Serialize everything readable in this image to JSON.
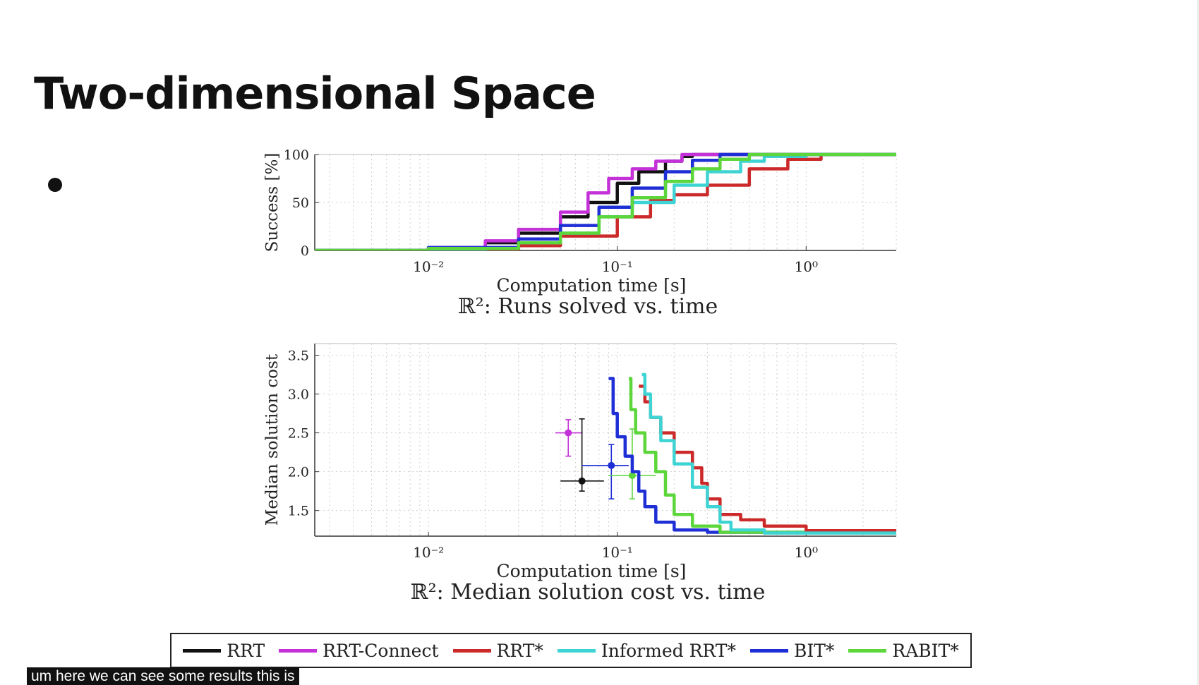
{
  "slide": {
    "title": "Two-dimensional Space",
    "caption": "um here we can see some results this is"
  },
  "chart_data": [
    {
      "type": "line",
      "title": "ℝ²: Runs solved vs. time",
      "xlabel": "Computation time [s]",
      "ylabel": "Success [%]",
      "x_scale": "log",
      "xlim": [
        0.0025,
        3
      ],
      "ylim": [
        0,
        100
      ],
      "yticks": [
        "0",
        "50",
        "100"
      ],
      "xticks": [
        {
          "value": 0.01,
          "label": "10⁻²"
        },
        {
          "value": 0.1,
          "label": "10⁻¹"
        },
        {
          "value": 1,
          "label": "10⁰"
        }
      ],
      "grid": true,
      "series": [
        {
          "name": "RRT",
          "color": "#111111",
          "x": [
            0.0025,
            0.01,
            0.02,
            0.03,
            0.05,
            0.07,
            0.1,
            0.13,
            0.18,
            0.22,
            0.25,
            3
          ],
          "y": [
            0,
            2,
            8,
            18,
            35,
            50,
            70,
            82,
            93,
            98,
            100,
            100
          ]
        },
        {
          "name": "RRT-Connect",
          "color": "#c431d8",
          "x": [
            0.0025,
            0.01,
            0.02,
            0.03,
            0.05,
            0.07,
            0.09,
            0.12,
            0.16,
            0.22,
            3
          ],
          "y": [
            0,
            3,
            10,
            22,
            40,
            60,
            75,
            85,
            93,
            100,
            100
          ]
        },
        {
          "name": "RRT*",
          "color": "#cc2a2a",
          "x": [
            0.0025,
            0.02,
            0.03,
            0.05,
            0.1,
            0.15,
            0.2,
            0.3,
            0.5,
            0.8,
            1.2,
            3
          ],
          "y": [
            0,
            0,
            5,
            15,
            35,
            52,
            58,
            68,
            85,
            95,
            100,
            100
          ]
        },
        {
          "name": "Informed RRT*",
          "color": "#3fd4d4",
          "x": [
            0.0025,
            0.02,
            0.03,
            0.05,
            0.08,
            0.12,
            0.2,
            0.3,
            0.45,
            0.6,
            1,
            3
          ],
          "y": [
            0,
            3,
            8,
            18,
            35,
            50,
            68,
            82,
            93,
            98,
            100,
            100
          ]
        },
        {
          "name": "BIT*",
          "color": "#1f2fd6",
          "x": [
            0.0025,
            0.01,
            0.03,
            0.05,
            0.08,
            0.12,
            0.18,
            0.25,
            0.35,
            3
          ],
          "y": [
            0,
            3,
            12,
            26,
            45,
            65,
            82,
            94,
            100,
            100
          ]
        },
        {
          "name": "RABIT*",
          "color": "#5cd63a",
          "x": [
            0.0025,
            0.01,
            0.03,
            0.05,
            0.08,
            0.12,
            0.18,
            0.25,
            0.35,
            0.5,
            3
          ],
          "y": [
            0,
            2,
            8,
            18,
            35,
            55,
            72,
            85,
            95,
            100,
            100
          ]
        }
      ]
    },
    {
      "type": "line",
      "title": "ℝ²: Median solution cost vs. time",
      "xlabel": "Computation time [s]",
      "ylabel": "Median solution cost",
      "x_scale": "log",
      "xlim": [
        0.0025,
        3
      ],
      "ylim": [
        1.17,
        3.65
      ],
      "yticks": [
        "1.5",
        "2.0",
        "2.5",
        "3.0",
        "3.5"
      ],
      "xticks": [
        {
          "value": 0.01,
          "label": "10⁻²"
        },
        {
          "value": 0.1,
          "label": "10⁻¹"
        },
        {
          "value": 1,
          "label": "10⁰"
        }
      ],
      "grid": true,
      "series": [
        {
          "name": "BIT*",
          "color": "#1f2fd6",
          "x": [
            0.09,
            0.095,
            0.1,
            0.11,
            0.12,
            0.13,
            0.14,
            0.16,
            0.2,
            0.3,
            3
          ],
          "y": [
            3.2,
            2.75,
            2.45,
            2.2,
            2.0,
            1.75,
            1.55,
            1.35,
            1.25,
            1.22,
            1.2
          ]
        },
        {
          "name": "RABIT*",
          "color": "#5cd63a",
          "x": [
            0.115,
            0.118,
            0.125,
            0.14,
            0.16,
            0.18,
            0.2,
            0.25,
            0.35,
            3
          ],
          "y": [
            3.2,
            2.8,
            2.5,
            2.25,
            2.0,
            1.7,
            1.45,
            1.3,
            1.22,
            1.2
          ]
        },
        {
          "name": "RRT*",
          "color": "#cc2a2a",
          "x": [
            0.13,
            0.14,
            0.15,
            0.17,
            0.2,
            0.25,
            0.28,
            0.3,
            0.35,
            0.45,
            0.6,
            1,
            3
          ],
          "y": [
            3.1,
            2.9,
            2.7,
            2.5,
            2.25,
            2.05,
            1.85,
            1.65,
            1.45,
            1.38,
            1.3,
            1.24,
            1.21
          ]
        },
        {
          "name": "Informed RRT*",
          "color": "#3fd4d4",
          "x": [
            0.135,
            0.14,
            0.15,
            0.17,
            0.2,
            0.25,
            0.3,
            0.35,
            0.4,
            0.6,
            3
          ],
          "y": [
            3.25,
            3.0,
            2.7,
            2.4,
            2.1,
            1.8,
            1.55,
            1.35,
            1.25,
            1.21,
            1.2
          ]
        }
      ],
      "error_points": [
        {
          "name": "RRT-Connect",
          "color": "#c431d8",
          "x": 0.055,
          "y": 2.5,
          "x_range": [
            0.047,
            0.065
          ],
          "y_range": [
            2.2,
            2.67
          ]
        },
        {
          "name": "RRT",
          "color": "#111111",
          "x": 0.065,
          "y": 1.88,
          "x_range": [
            0.05,
            0.085
          ],
          "y_range": [
            1.75,
            2.68
          ]
        },
        {
          "name": "BIT*",
          "color": "#1f2fd6",
          "x": 0.093,
          "y": 2.08,
          "x_range": [
            0.065,
            0.115
          ],
          "y_range": [
            1.65,
            2.35
          ]
        },
        {
          "name": "RABIT*",
          "color": "#5cd63a",
          "x": 0.12,
          "y": 1.95,
          "x_range": [
            0.09,
            0.16
          ],
          "y_range": [
            1.65,
            2.55
          ]
        }
      ]
    }
  ],
  "legend": [
    {
      "label": "RRT",
      "color": "#111111"
    },
    {
      "label": "RRT-Connect",
      "color": "#c431d8"
    },
    {
      "label": "RRT*",
      "color": "#cc2a2a"
    },
    {
      "label": "Informed RRT*",
      "color": "#3fd4d4"
    },
    {
      "label": "BIT*",
      "color": "#1f2fd6"
    },
    {
      "label": "RABIT*",
      "color": "#5cd63a"
    }
  ]
}
